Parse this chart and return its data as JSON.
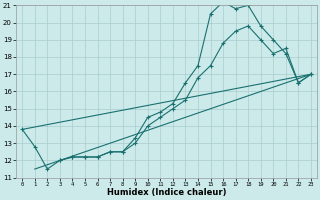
{
  "xlabel": "Humidex (Indice chaleur)",
  "bg_color": "#cceaea",
  "grid_color": "#aacccc",
  "line_color": "#1a7070",
  "xlim": [
    -0.5,
    23.5
  ],
  "ylim": [
    11,
    21
  ],
  "xticks": [
    0,
    1,
    2,
    3,
    4,
    5,
    6,
    7,
    8,
    9,
    10,
    11,
    12,
    13,
    14,
    15,
    16,
    17,
    18,
    19,
    20,
    21,
    22,
    23
  ],
  "yticks": [
    11,
    12,
    13,
    14,
    15,
    16,
    17,
    18,
    19,
    20,
    21
  ],
  "series1_x": [
    0,
    1,
    2,
    3,
    4,
    5,
    6,
    7,
    8,
    9,
    10,
    11,
    12,
    13,
    14,
    15,
    16,
    17,
    18,
    19,
    20,
    21,
    22,
    23
  ],
  "series1_y": [
    13.8,
    12.8,
    11.5,
    12.0,
    12.2,
    12.2,
    12.2,
    12.5,
    12.5,
    13.3,
    14.5,
    14.8,
    15.3,
    16.5,
    17.5,
    20.5,
    21.2,
    20.8,
    21.0,
    19.8,
    19.0,
    18.2,
    16.5,
    17.0
  ],
  "series2_x": [
    3,
    4,
    5,
    6,
    7,
    8,
    9,
    10,
    11,
    12,
    13,
    14,
    15,
    16,
    17,
    18,
    19,
    20,
    21,
    22,
    23
  ],
  "series2_y": [
    12.0,
    12.2,
    12.2,
    12.2,
    12.5,
    12.5,
    13.0,
    14.0,
    14.5,
    15.0,
    15.5,
    16.8,
    17.5,
    18.8,
    19.5,
    19.8,
    19.0,
    18.2,
    18.5,
    16.5,
    17.0
  ],
  "series3_x": [
    0,
    23
  ],
  "series3_y": [
    13.8,
    17.0
  ],
  "series4_x": [
    1,
    23
  ],
  "series4_y": [
    11.5,
    17.0
  ]
}
